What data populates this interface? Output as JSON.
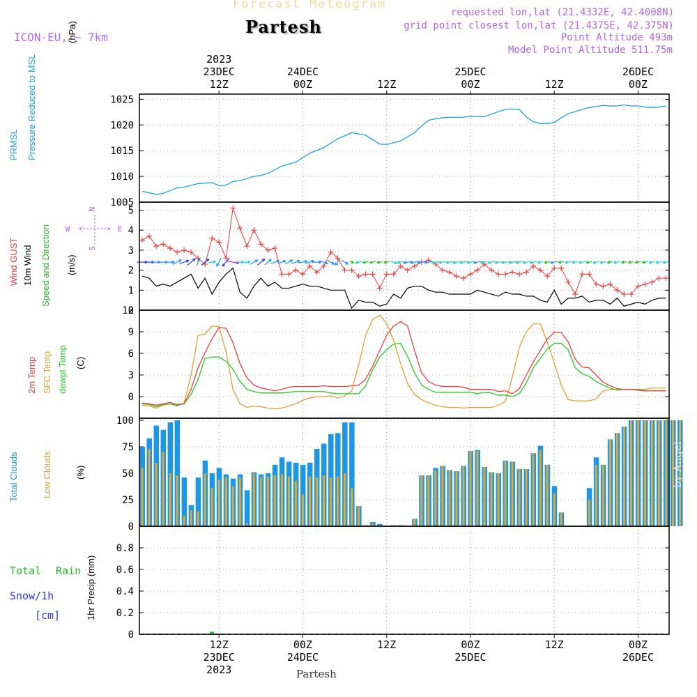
{
  "header": {
    "product": "Forecast Meteogram",
    "place": "Partesh",
    "model": "ICON-EU, ~ 7km",
    "requested": "requested lon,lat (21.4332E, 42.4008N)",
    "gridpoint": "grid point closest lon,lat (21.4375E, 42.375N)",
    "point_alt": "Point Altitude 493m",
    "model_alt": "Model Point Altitude 511.75m",
    "footer_place": "Partesh",
    "credit": "by Angel"
  },
  "colors": {
    "pressure": "#1ba1e2",
    "gust": "#ef3b3b",
    "wind": "#000000",
    "dir": "#22bb22",
    "temp2m": "#ef3b3b",
    "sfc": "#e0a030",
    "dew": "#22cc22",
    "total_clouds": "#1e96e6",
    "low_clouds": "#dcaa3c",
    "rain": "#22bb22",
    "snow": "#3333ff",
    "violet": "#b266e0"
  },
  "chart_data": {
    "type": "meteogram",
    "time_start": "2023-12-23 01Z",
    "time_step_hours": 1,
    "top_axis": [
      {
        "h": 11,
        "lines": [
          "2023",
          "23DEC",
          "12Z"
        ]
      },
      {
        "h": 23,
        "lines": [
          "24DEC",
          "00Z"
        ]
      },
      {
        "h": 35,
        "lines": [
          "12Z"
        ]
      },
      {
        "h": 47,
        "lines": [
          "25DEC",
          "00Z"
        ]
      },
      {
        "h": 59,
        "lines": [
          "12Z"
        ]
      },
      {
        "h": 71,
        "lines": [
          "26DEC",
          "00Z"
        ]
      }
    ],
    "bottom_axis": [
      {
        "h": 11,
        "lines": [
          "12Z",
          "23DEC",
          "2023"
        ]
      },
      {
        "h": 23,
        "lines": [
          "00Z",
          "24DEC"
        ]
      },
      {
        "h": 35,
        "lines": [
          "12Z"
        ]
      },
      {
        "h": 47,
        "lines": [
          "00Z",
          "25DEC"
        ]
      },
      {
        "h": 59,
        "lines": [
          "12Z"
        ]
      },
      {
        "h": 71,
        "lines": [
          "00Z",
          "26DEC"
        ]
      }
    ],
    "pressure": {
      "labels": [
        "PRMSL",
        "Pressure Reduced to MSL"
      ],
      "unit": "(hPa)",
      "ylim": [
        1005,
        1026
      ],
      "ticks": [
        1005,
        1010,
        1015,
        1020,
        1025
      ],
      "x": [
        0,
        2,
        3,
        5,
        6,
        8,
        10,
        11,
        12,
        13,
        14,
        16,
        17,
        18,
        20,
        22,
        24,
        26,
        28,
        30,
        32,
        34,
        35,
        37,
        39,
        40,
        41,
        42,
        43,
        44,
        45,
        46,
        47,
        49,
        50,
        51,
        52,
        53,
        54,
        55,
        56,
        57,
        58,
        59,
        60,
        61,
        62,
        63,
        64,
        65,
        66,
        67,
        68,
        69,
        70,
        71,
        72,
        73,
        74,
        75
      ],
      "values": [
        1007.1,
        1006.5,
        1006.7,
        1007.8,
        1007.9,
        1008.6,
        1008.8,
        1008.2,
        1008.3,
        1009.0,
        1009.2,
        1010.0,
        1010.2,
        1010.6,
        1012.0,
        1012.8,
        1014.5,
        1015.6,
        1017.3,
        1018.5,
        1018.0,
        1016.3,
        1016.2,
        1016.9,
        1018.5,
        1019.8,
        1020.9,
        1021.2,
        1021.4,
        1021.5,
        1021.5,
        1021.5,
        1021.7,
        1021.6,
        1022.1,
        1022.6,
        1023.0,
        1023.1,
        1023.0,
        1021.6,
        1020.6,
        1020.3,
        1020.3,
        1020.5,
        1021.4,
        1022.2,
        1022.6,
        1023.0,
        1023.4,
        1023.6,
        1023.8,
        1023.7,
        1023.7,
        1023.9,
        1023.7,
        1023.7,
        1023.5,
        1023.4,
        1023.5,
        1023.7
      ]
    },
    "wind": {
      "labels": [
        "Wind GUST",
        "10m Wind",
        "Speed and Direction"
      ],
      "unit": "(m/s)",
      "compass": {
        "n": "N",
        "w": "W",
        "e": "E",
        "s": "S"
      },
      "ylim": [
        0,
        5.4
      ],
      "ticks": [
        0,
        1,
        2,
        3,
        4,
        5
      ],
      "gust": [
        3.5,
        3.7,
        3.2,
        3.3,
        3.1,
        2.9,
        3.0,
        2.9,
        2.6,
        2.3,
        3.6,
        3.4,
        2.6,
        5.1,
        4.1,
        3.2,
        4.0,
        3.3,
        3.0,
        3.1,
        1.8,
        1.8,
        2.0,
        1.8,
        2.2,
        1.9,
        2.2,
        2.9,
        2.6,
        2.0,
        2.0,
        1.7,
        1.8,
        1.8,
        1.1,
        1.8,
        1.8,
        2.2,
        2.0,
        2.2,
        2.4,
        2.5,
        2.3,
        2.0,
        1.9,
        1.7,
        1.6,
        1.8,
        2.0,
        2.3,
        2.0,
        1.8,
        1.8,
        1.9,
        1.8,
        1.9,
        2.2,
        2.0,
        1.7,
        2.1,
        2.1,
        1.4,
        0.8,
        1.8,
        1.8,
        1.3,
        1.2,
        1.3,
        1.0,
        0.8,
        0.8,
        1.2,
        1.3,
        1.4,
        1.6,
        1.6
      ],
      "speed": [
        1.7,
        1.6,
        1.2,
        1.3,
        1.2,
        1.4,
        1.6,
        1.8,
        1.1,
        1.6,
        0.8,
        1.4,
        1.8,
        2.1,
        0.9,
        0.6,
        1.2,
        1.6,
        1.2,
        1.4,
        1.1,
        1.1,
        1.2,
        1.3,
        1.2,
        1.2,
        1.1,
        1.0,
        1.0,
        1.0,
        0.1,
        0.5,
        0.4,
        0.4,
        0.2,
        0.3,
        0.8,
        0.6,
        1.1,
        1.2,
        1.2,
        1.0,
        0.9,
        0.9,
        0.8,
        0.8,
        0.8,
        0.8,
        1.0,
        0.9,
        0.8,
        0.7,
        0.9,
        0.8,
        0.8,
        0.7,
        0.7,
        0.5,
        0.4,
        1.0,
        0.3,
        0.6,
        0.6,
        0.7,
        0.4,
        0.5,
        0.5,
        0.3,
        0.6,
        0.2,
        0.3,
        0.4,
        0.3,
        0.5,
        0.6,
        0.6
      ],
      "dir_deg": [
        270,
        270,
        270,
        270,
        270,
        240,
        250,
        230,
        200,
        230,
        260,
        30,
        40,
        280,
        270,
        260,
        240,
        230,
        230,
        250,
        250,
        240,
        250,
        260,
        250,
        270,
        290,
        300,
        40,
        300,
        290,
        80,
        80,
        80,
        80,
        80,
        290,
        80,
        80,
        80,
        80,
        80,
        80,
        80,
        80,
        80,
        80,
        80,
        80,
        80,
        80,
        80,
        80,
        80,
        80,
        80,
        80,
        80,
        80,
        80,
        80,
        80,
        80,
        80,
        80,
        80,
        80,
        80,
        80,
        80,
        80,
        80,
        80,
        80,
        80,
        80
      ]
    },
    "temperature": {
      "labels": [
        "2m Temp",
        "SFC Temp",
        "dewpt Temp"
      ],
      "unit": "(C)",
      "ylim": [
        -3,
        12
      ],
      "ticks": [
        0,
        3,
        6,
        9,
        12
      ],
      "t2m": [
        -0.9,
        -1.0,
        -1.2,
        -1.0,
        -0.8,
        -1.1,
        -1.0,
        1.0,
        4.0,
        6.1,
        8.0,
        9.6,
        9.5,
        7.5,
        4.6,
        2.6,
        1.6,
        1.2,
        1.0,
        0.8,
        1.0,
        1.3,
        1.4,
        1.4,
        1.4,
        1.4,
        1.5,
        1.4,
        1.4,
        1.4,
        1.5,
        1.6,
        2.4,
        4.2,
        6.4,
        8.5,
        9.8,
        10.4,
        9.8,
        6.4,
        3.3,
        2.1,
        1.6,
        1.4,
        1.4,
        1.4,
        1.3,
        1.0,
        1.0,
        1.0,
        1.0,
        0.7,
        0.8,
        0.4,
        1.1,
        3.0,
        4.8,
        6.4,
        8.0,
        8.9,
        8.9,
        7.6,
        5.2,
        4.1,
        4.0,
        3.0,
        2.0,
        1.5,
        1.1,
        1.0,
        1.0,
        0.9,
        0.8,
        0.8,
        0.8,
        0.8
      ],
      "sfc": [
        -1.2,
        -1.3,
        -1.6,
        -1.2,
        -1.0,
        -1.3,
        -0.9,
        3.0,
        8.5,
        8.7,
        9.8,
        9.7,
        6.3,
        1.0,
        -1.0,
        -1.5,
        -1.3,
        -1.4,
        -1.6,
        -1.7,
        -1.6,
        -1.3,
        -1.0,
        -0.5,
        -0.2,
        0.0,
        0.0,
        0.1,
        -0.2,
        0.1,
        0.8,
        4.4,
        8.5,
        10.7,
        11.3,
        10.2,
        7.8,
        4.6,
        1.8,
        0.3,
        -0.4,
        -0.9,
        -1.2,
        -1.4,
        -1.5,
        -1.5,
        -1.6,
        -1.5,
        -1.5,
        -1.5,
        -1.5,
        -1.2,
        -0.7,
        2.7,
        6.8,
        9.0,
        10.1,
        10.1,
        7.6,
        4.7,
        1.6,
        -0.4,
        -0.6,
        -0.6,
        -0.6,
        -0.3,
        0.8,
        1.0,
        1.0,
        1.0,
        1.0,
        1.0,
        1.0,
        1.2,
        1.2,
        1.2
      ],
      "dew": [
        -1.0,
        -1.1,
        -1.4,
        -1.1,
        -1.0,
        -1.2,
        -1.0,
        0.3,
        2.4,
        5.3,
        5.5,
        5.5,
        4.9,
        3.8,
        2.1,
        1.0,
        0.7,
        0.5,
        0.5,
        0.5,
        0.5,
        0.6,
        0.7,
        0.7,
        0.7,
        0.7,
        0.7,
        0.5,
        0.4,
        0.4,
        0.4,
        0.4,
        1.5,
        3.7,
        5.5,
        6.5,
        7.3,
        7.4,
        5.6,
        3.3,
        1.6,
        1.0,
        0.6,
        0.6,
        0.6,
        0.6,
        0.6,
        0.6,
        0.4,
        0.6,
        0.5,
        0.2,
        0.2,
        0.0,
        0.4,
        1.9,
        4.0,
        5.3,
        6.6,
        7.4,
        7.4,
        6.5,
        4.0,
        3.2,
        2.8,
        2.1,
        1.6,
        1.2,
        0.9,
        1.0,
        1.0,
        1.0,
        0.8,
        0.8,
        0.8,
        0.8
      ]
    },
    "clouds": {
      "labels": [
        "Total Clouds",
        "Low Clouds"
      ],
      "unit": "(%)",
      "ylim": [
        0,
        102
      ],
      "ticks": [
        0,
        25,
        50,
        75,
        100
      ],
      "total": [
        75,
        83,
        95,
        91,
        98,
        100,
        46,
        20,
        46,
        62,
        50,
        55,
        49,
        45,
        49,
        34,
        51,
        49,
        50,
        58,
        65,
        61,
        60,
        58,
        60,
        73,
        78,
        87,
        88,
        98,
        98,
        19,
        1,
        4,
        2,
        0,
        1,
        1,
        0,
        7,
        48,
        48,
        55,
        57,
        53,
        52,
        57,
        71,
        72,
        56,
        51,
        50,
        62,
        61,
        54,
        54,
        69,
        76,
        58,
        38,
        13,
        0,
        0,
        0,
        36,
        65,
        58,
        82,
        88,
        94,
        100,
        100,
        100,
        100,
        100,
        100,
        100,
        100
      ],
      "low": [
        55,
        73,
        60,
        70,
        50,
        48,
        10,
        15,
        14,
        50,
        36,
        44,
        46,
        38,
        46,
        3,
        50,
        46,
        47,
        48,
        49,
        47,
        43,
        30,
        47,
        46,
        48,
        46,
        47,
        50,
        36,
        19,
        1,
        3,
        1,
        0,
        1,
        1,
        0,
        7,
        48,
        48,
        53,
        57,
        53,
        52,
        57,
        71,
        71,
        56,
        51,
        50,
        62,
        61,
        54,
        54,
        69,
        72,
        58,
        31,
        13,
        0,
        0,
        0,
        25,
        58,
        58,
        82,
        88,
        94,
        100,
        100,
        100,
        100,
        100,
        100,
        100,
        100
      ]
    },
    "precip": {
      "labels": [
        "1hr Precip (mm)"
      ],
      "rain_label": [
        "Total",
        "Rain"
      ],
      "snow_label": [
        "Snow/1h",
        "[cm]"
      ],
      "ylim": [
        0,
        1.0
      ],
      "ticks": [
        0,
        0.2,
        0.4,
        0.6,
        0.8
      ],
      "rain": [
        {
          "h": 10,
          "v": 0.01
        }
      ],
      "snow": []
    }
  }
}
